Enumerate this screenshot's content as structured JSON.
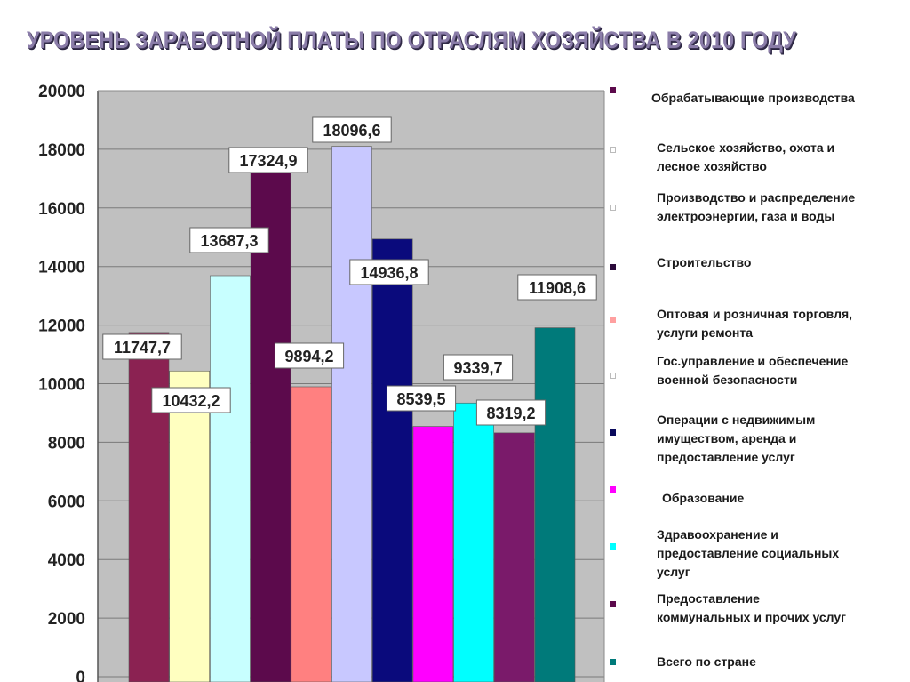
{
  "title": "УРОВЕНЬ ЗАРАБОТНОЙ ПЛАТЫ ПО ОТРАСЛЯМ ХОЗЯЙСТВА В 2010 ГОДУ",
  "chart_data": {
    "type": "bar",
    "title": "УРОВЕНЬ ЗАРАБОТНОЙ ПЛАТЫ ПО ОТРАСЛЯМ ХОЗЯЙСТВА В 2010 ГОДУ",
    "xlabel": "",
    "ylabel": "",
    "ylim": [
      0,
      20000
    ],
    "y_ticks": [
      0,
      2000,
      4000,
      6000,
      8000,
      10000,
      12000,
      14000,
      16000,
      18000,
      20000
    ],
    "y_tick_labels": [
      "0",
      "2000",
      "4000",
      "6000",
      "8000",
      "10000",
      "12000",
      "14000",
      "16000",
      "18000",
      "20000"
    ],
    "grid": true,
    "legend_position": "right",
    "categories": [
      "Обрабатывающие производства",
      "Сельское хозяйство, охота и\n лесное хозяйство",
      "Производство и распределение\nэлектроэнергии, газа и воды",
      "Строительство",
      "Оптовая и розничная торговля,\n услуги ремонта",
      "Гос.управление и обеспечение\n военной безопасности",
      "Операции с недвижимым\n имуществом, аренда и\nпредоставление услуг",
      "Образование",
      "Здравоохранение и\nпредоставление социальных\n услуг",
      "Предоставление\nкоммунальных и прочих услуг",
      "Всего по стране"
    ],
    "values": [
      11747.7,
      10432.2,
      13687.3,
      17324.9,
      9894.2,
      18096.6,
      14936.8,
      8539.5,
      9339.7,
      8319.2,
      11908.6
    ],
    "value_labels": [
      "11747,7",
      "10432,2",
      "13687,3",
      "17324,9",
      "9894,2",
      "18096,6",
      "14936,8",
      "8539,5",
      "9339,7",
      "8319,2",
      "11908,6"
    ],
    "colors": [
      "#8b2252",
      "#ffffc0",
      "#c8ffff",
      "#5c0a4c",
      "#ff8080",
      "#c8c8ff",
      "#0a0a7c",
      "#ff00ff",
      "#00ffff",
      "#7a1a6a",
      "#007a7a"
    ]
  }
}
